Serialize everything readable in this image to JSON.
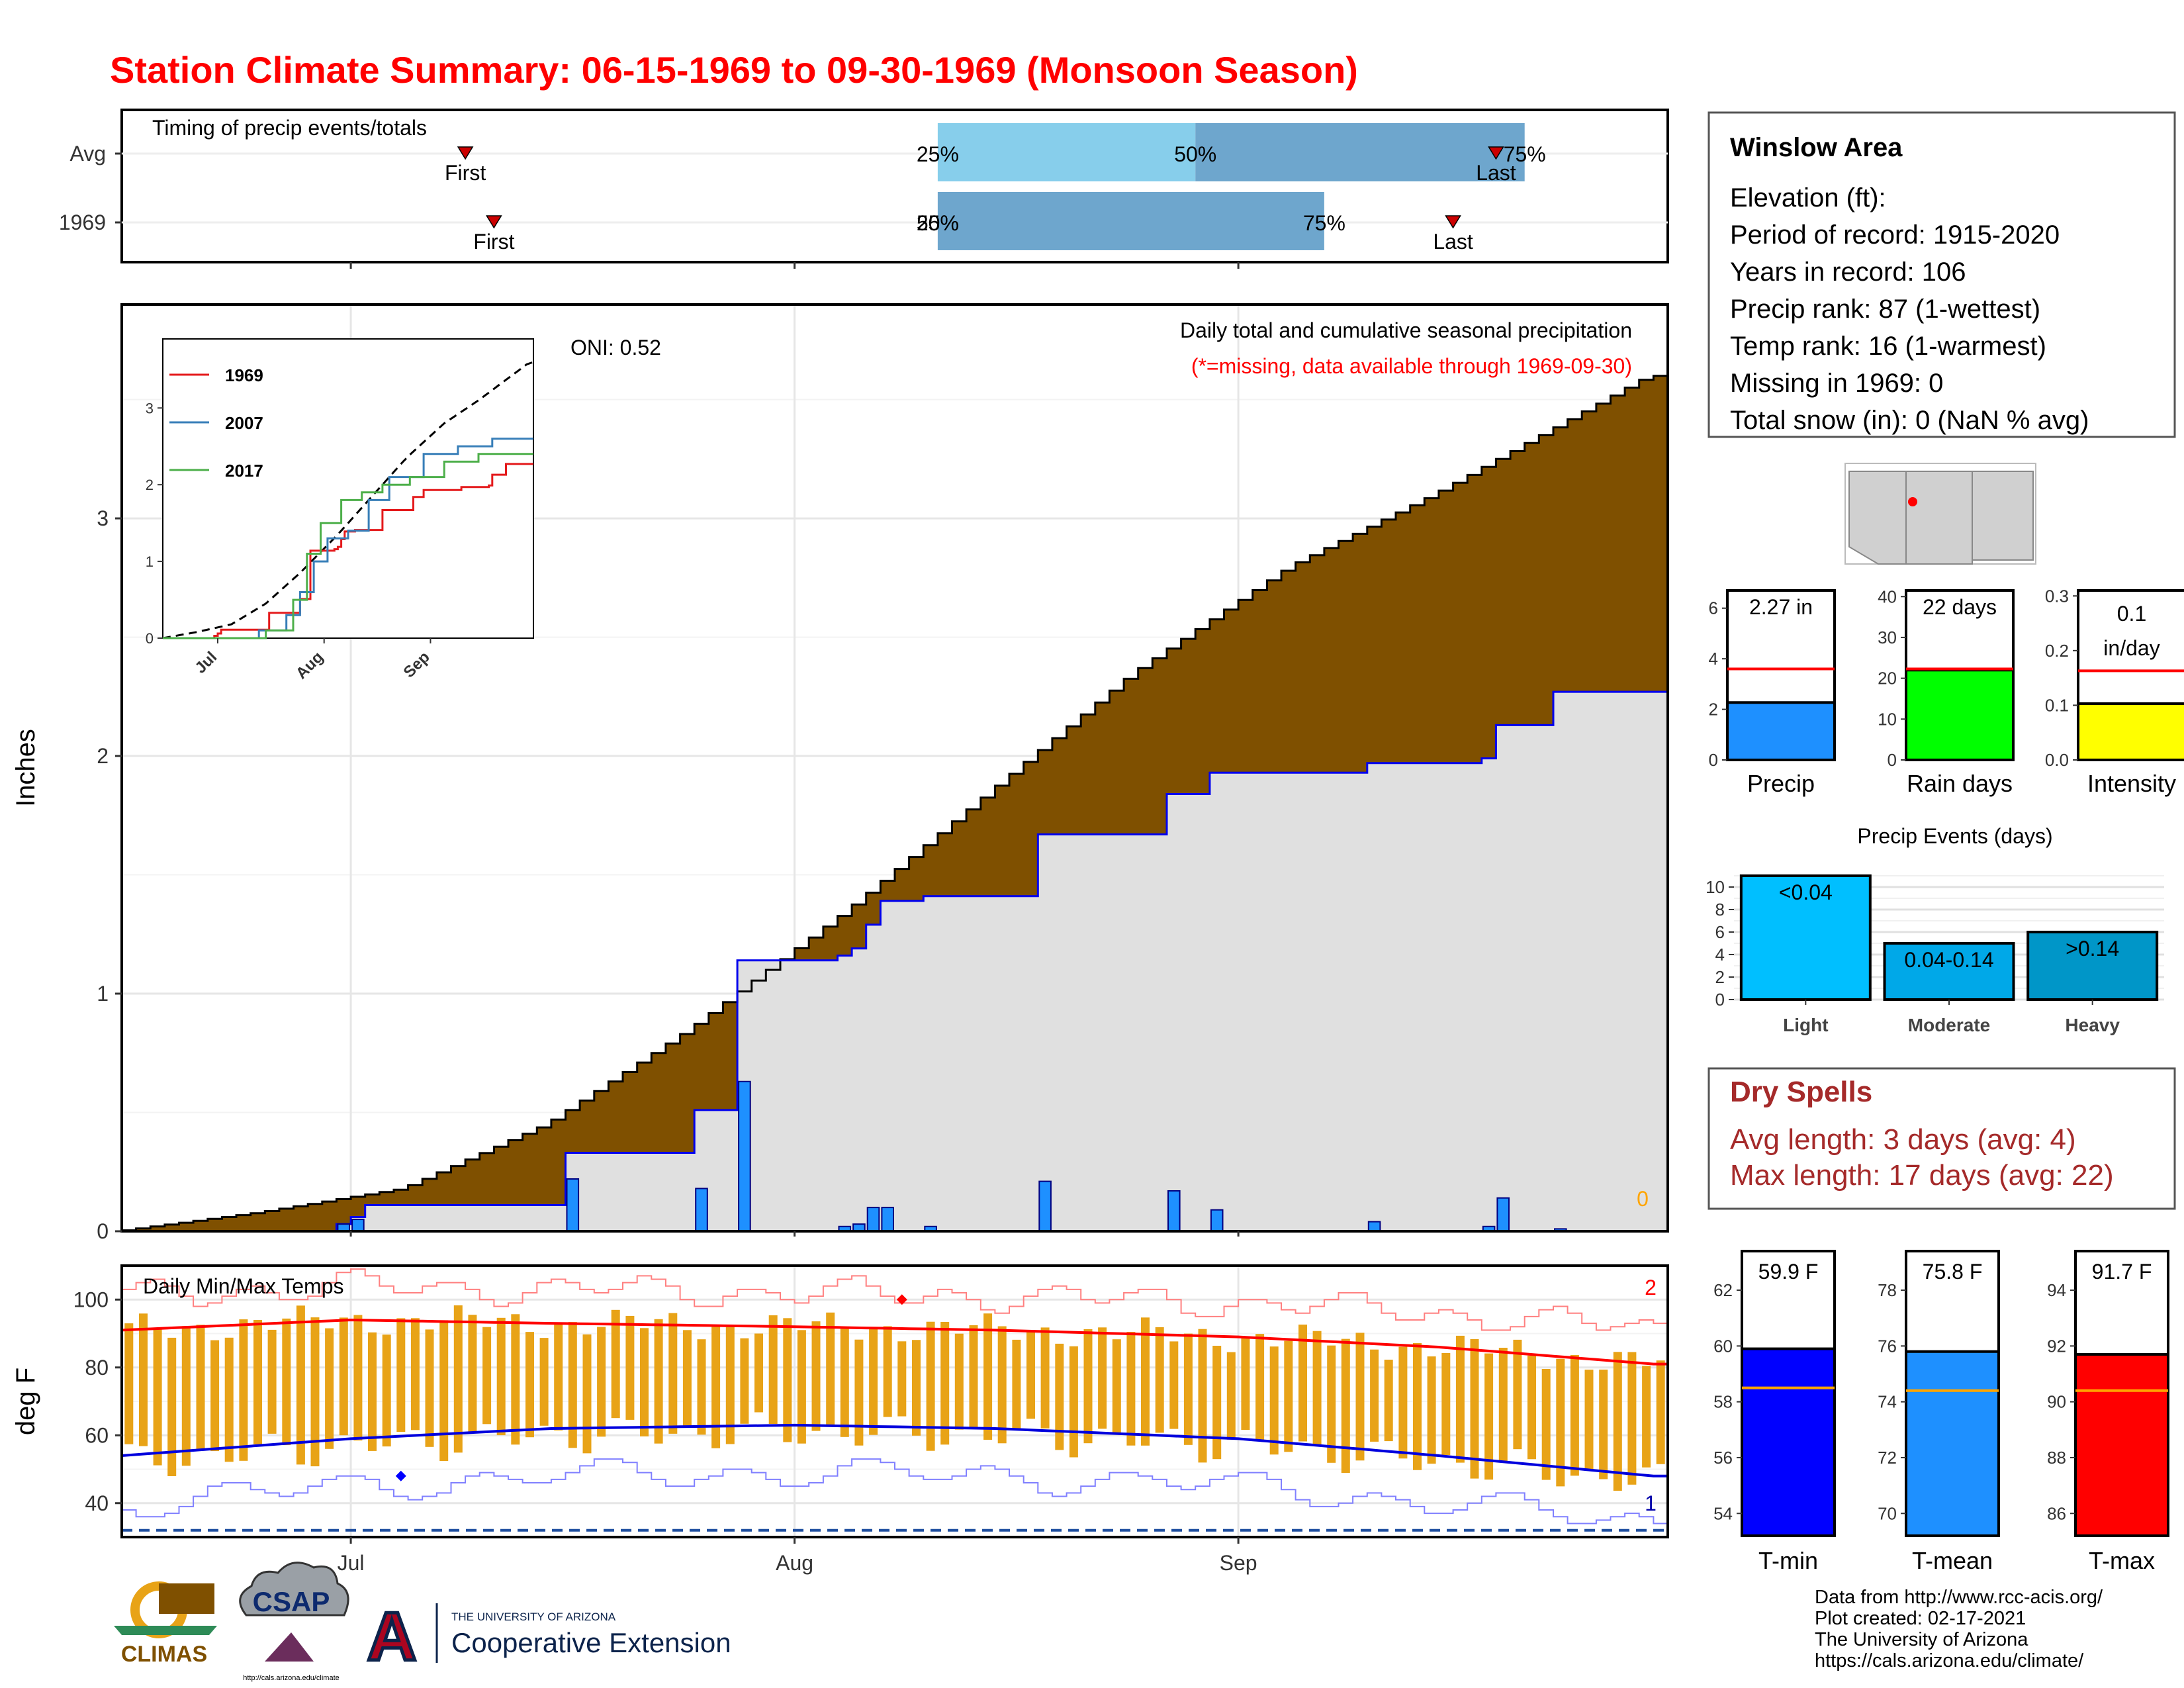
{
  "title": "Station Climate Summary: 06-15-1969 to 09-30-1969 (Monsoon Season)",
  "colors": {
    "title": "#ff0000",
    "accum_fill": "#7f5000",
    "observed_fill": "#e0e0e0",
    "daily_bar": "#1e90ff",
    "temp_bar": "#e8a317",
    "mean_max": "#ff0000",
    "mean_min": "#0000dd",
    "record_high": "#ff8080",
    "record_low": "#8080ff",
    "precip_tile": "#1e90ff",
    "raindays_tile": "#00ff00",
    "intensity_tile": "#ffff00",
    "events_light": "#00bfff",
    "events_moderate": "#00a8e8",
    "events_heavy": "#0096c8",
    "tmin_tile": "#0000ff",
    "tmean_tile": "#1e90ff",
    "tmax_tile": "#ff0000",
    "dry_spells": "#a52a2a"
  },
  "timing": {
    "panel_label": "Timing of precip events/totals",
    "rows": [
      {
        "label": "Avg",
        "first_day": 24,
        "last_day": 96,
        "p25": 57,
        "p50": 75,
        "p75": 98,
        "first_text": "First",
        "last_text": "Last",
        "p25_text": "25%",
        "p50_text": "50%",
        "p75_text": "75%"
      },
      {
        "label": "1969",
        "first_day": 26,
        "last_day": 93,
        "p25": 57,
        "p50": 57,
        "p75": 84,
        "first_text": "First",
        "last_text": "Last",
        "p25_text": "25%",
        "p50_text": "50%",
        "p75_text": "75%"
      }
    ]
  },
  "precip_panel": {
    "ylabel": "Inches",
    "oni_text": "ONI: 0.52",
    "caption": "Daily total and cumulative seasonal precipitation",
    "missing_note": "(*=missing, data available through 1969-09-30)",
    "missing_count": "0",
    "y_ticks": [
      "0",
      "1",
      "2",
      "3"
    ]
  },
  "inset": {
    "legend": [
      "1969",
      "2007",
      "2017"
    ],
    "y_ticks": [
      "0",
      "1",
      "2",
      "3"
    ],
    "x_ticks": [
      "Jul",
      "Aug",
      "Sep"
    ]
  },
  "temp_panel": {
    "label": "Daily Min/Max Temps",
    "ylabel": "deg F",
    "y_ticks": [
      "40",
      "60",
      "80",
      "100"
    ],
    "record_high_count": "2",
    "record_low_count": "1"
  },
  "x_ticks": [
    "Jul",
    "Aug",
    "Sep"
  ],
  "station": {
    "name": "Winslow Area",
    "lines": [
      "Elevation (ft):",
      "Period of record: 1915-2020",
      "Years in record: 106",
      "Precip rank: 87 (1-wettest)",
      "Temp rank: 16 (1-warmest)",
      "Missing in 1969: 0",
      "Total snow (in): 0 (NaN % avg)"
    ]
  },
  "tiles": [
    {
      "name": "Precip",
      "value_text": "2.27 in",
      "value": 2.27,
      "avg": 3.6,
      "ymax": 6.7,
      "ticks": [
        "0",
        "2",
        "4",
        "6"
      ],
      "tick_vals": [
        0,
        2,
        4,
        6
      ]
    },
    {
      "name": "Rain days",
      "value_text": "22 days",
      "value": 22,
      "avg": 22.3,
      "ymax": 41.5,
      "ticks": [
        "0",
        "10",
        "20",
        "30",
        "40"
      ],
      "tick_vals": [
        0,
        10,
        20,
        30,
        40
      ]
    },
    {
      "name": "Intensity",
      "value_text": "0.1 in/day",
      "value": 0.103,
      "avg": 0.163,
      "ymax": 0.31,
      "ticks": [
        "0.0",
        "0.1",
        "0.2",
        "0.3"
      ],
      "tick_vals": [
        0,
        0.1,
        0.2,
        0.3
      ]
    }
  ],
  "events": {
    "title": "Precip Events (days)",
    "categories": [
      "Light",
      "Moderate",
      "Heavy"
    ],
    "bar_labels": [
      "<0.04",
      "0.04-0.14",
      ">0.14"
    ],
    "values": [
      11,
      5,
      6
    ],
    "y_ticks": [
      "0",
      "2",
      "4",
      "6",
      "8",
      "10"
    ]
  },
  "dry_spells": {
    "title": "Dry Spells",
    "lines": [
      "Avg length: 3 days (avg: 4)",
      "Max length: 17 days (avg: 22)"
    ]
  },
  "temp_tiles": [
    {
      "name": "T-min",
      "value_text": "59.9 F",
      "value": 59.9,
      "avg": 58.5,
      "ymin": 53.2,
      "ymax": 63.4,
      "ticks": [
        "54",
        "56",
        "58",
        "60",
        "62"
      ],
      "tick_vals": [
        54,
        56,
        58,
        60,
        62
      ]
    },
    {
      "name": "T-mean",
      "value_text": "75.8 F",
      "value": 75.8,
      "avg": 74.4,
      "ymin": 69.2,
      "ymax": 79.4,
      "ticks": [
        "70",
        "72",
        "74",
        "76",
        "78"
      ],
      "tick_vals": [
        70,
        72,
        74,
        76,
        78
      ]
    },
    {
      "name": "T-max",
      "value_text": "91.7 F",
      "value": 91.7,
      "avg": 90.4,
      "ymin": 85.2,
      "ymax": 95.4,
      "ticks": [
        "86",
        "88",
        "90",
        "92",
        "94"
      ],
      "tick_vals": [
        86,
        88,
        90,
        92,
        94
      ]
    }
  ],
  "credits": [
    "Data from http://www.rcc-acis.org/",
    "Plot created: 02-17-2021",
    "The University of Arizona",
    "https://cals.arizona.edu/climate/"
  ],
  "logos": {
    "climas": "CLIMAS",
    "csap": "CSAP",
    "csap_url": "http://cals.arizona.edu/climate",
    "ua_small": "THE UNIVERSITY OF ARIZONA",
    "ua_main": "Cooperative Extension"
  },
  "chart_data": {
    "type": "area",
    "title": "Station Climate Summary: 06-15-1969 to 09-30-1969 (Monsoon Season)",
    "subtitle": "Daily total and cumulative seasonal precipitation",
    "xlabel": "",
    "ylabel": "Inches",
    "x_range": [
      "1969-06-15",
      "1969-09-30"
    ],
    "ylim": [
      0,
      3.9
    ],
    "grid": true,
    "daily_precip": {
      "dates": [
        "1969-06-30",
        "1969-07-01",
        "1969-07-16",
        "1969-07-25",
        "1969-07-28",
        "1969-08-04",
        "1969-08-05",
        "1969-08-06",
        "1969-08-07",
        "1969-08-10",
        "1969-08-18",
        "1969-08-27",
        "1969-08-30",
        "1969-09-10",
        "1969-09-18",
        "1969-09-19",
        "1969-09-23"
      ],
      "values": [
        0.03,
        0.05,
        0.22,
        0.18,
        0.63,
        0.02,
        0.03,
        0.1,
        0.1,
        0.02,
        0.21,
        0.17,
        0.09,
        0.04,
        0.02,
        0.14,
        0.01
      ]
    },
    "cumulative_1969": {
      "dates": [
        "1969-06-15",
        "1969-06-30",
        "1969-07-01",
        "1969-07-02",
        "1969-07-16",
        "1969-07-25",
        "1969-07-28",
        "1969-08-04",
        "1969-08-05",
        "1969-08-06",
        "1969-08-07",
        "1969-08-10",
        "1969-08-18",
        "1969-08-27",
        "1969-08-30",
        "1969-09-10",
        "1969-09-18",
        "1969-09-19",
        "1969-09-23",
        "1969-09-30"
      ],
      "values": [
        0.0,
        0.03,
        0.06,
        0.11,
        0.33,
        0.51,
        1.14,
        1.16,
        1.19,
        1.29,
        1.39,
        1.41,
        1.67,
        1.84,
        1.93,
        1.97,
        1.99,
        2.13,
        2.27,
        2.27
      ]
    },
    "cumulative_average": {
      "dates": [
        "1969-06-15",
        "1969-06-25",
        "1969-07-05",
        "1969-07-15",
        "1969-07-25",
        "1969-08-05",
        "1969-08-15",
        "1969-08-25",
        "1969-09-05",
        "1969-09-15",
        "1969-09-30"
      ],
      "values": [
        0.0,
        0.08,
        0.18,
        0.45,
        0.85,
        1.35,
        1.85,
        2.35,
        2.8,
        3.1,
        3.6
      ]
    },
    "temperature": {
      "ylim": [
        30,
        110
      ],
      "mean_max": {
        "dates": [
          "1969-06-15",
          "1969-07-01",
          "1969-07-15",
          "1969-08-01",
          "1969-08-15",
          "1969-09-01",
          "1969-09-15",
          "1969-09-30"
        ],
        "values": [
          91,
          94,
          93,
          92,
          91,
          89,
          86,
          81
        ]
      },
      "mean_min": {
        "dates": [
          "1969-06-15",
          "1969-07-01",
          "1969-07-15",
          "1969-08-01",
          "1969-08-15",
          "1969-09-01",
          "1969-09-15",
          "1969-09-30"
        ],
        "values": [
          54,
          59,
          62,
          63,
          62,
          59,
          54,
          48
        ]
      },
      "record_low_marker": {
        "date": "1969-07-04",
        "value": 48
      },
      "record_high_marker": {
        "date": "1969-08-08",
        "value": 100
      }
    }
  }
}
